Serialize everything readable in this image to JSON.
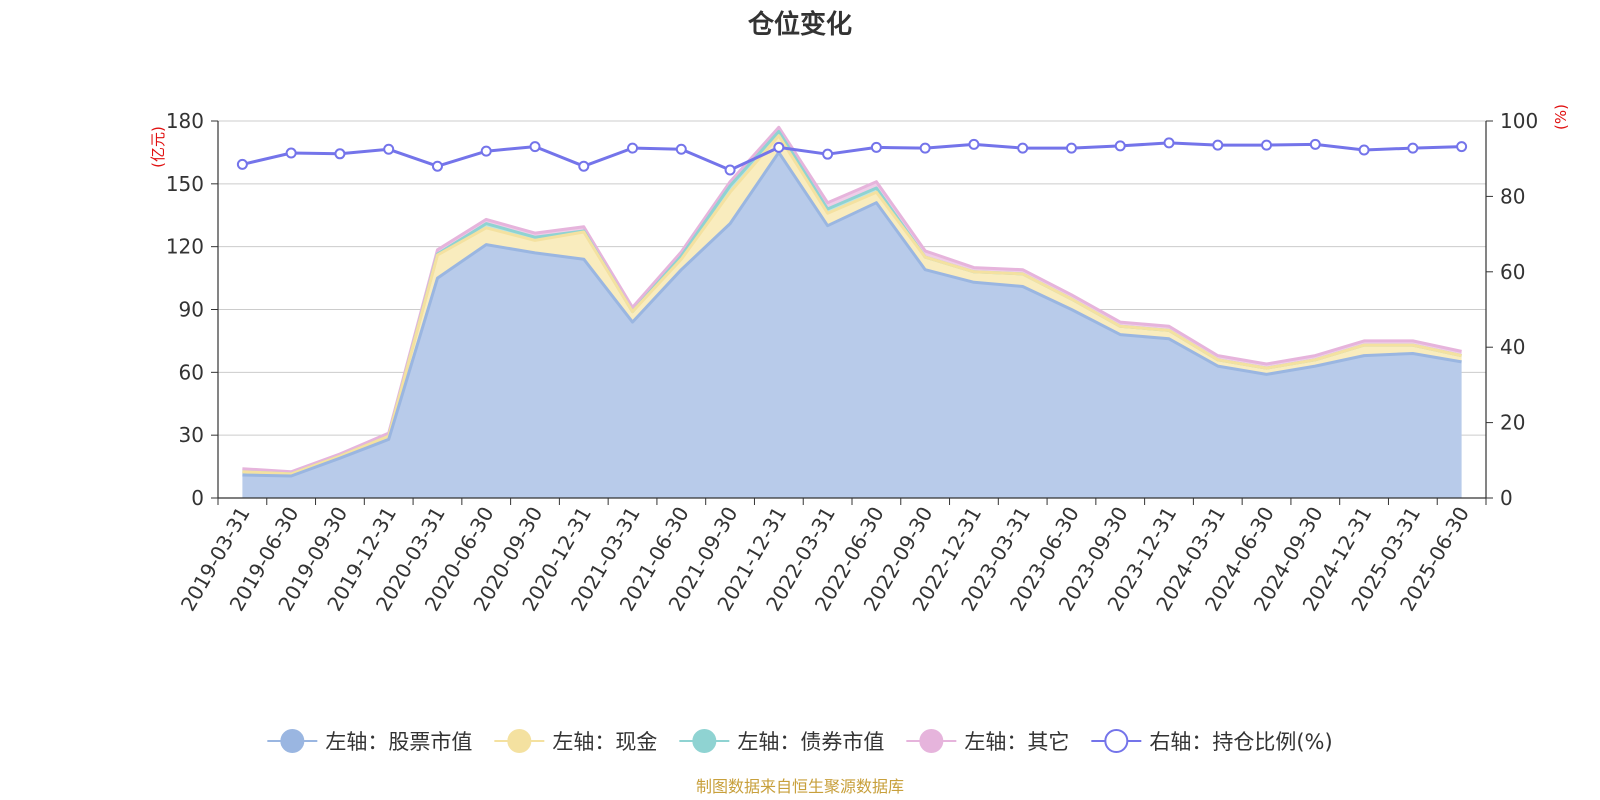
{
  "chart_data": {
    "type": "area",
    "title": "仓位变化",
    "left_unit": "(亿元)",
    "right_unit": "(%)",
    "left_ylim": [
      0,
      180
    ],
    "left_ticks": [
      0,
      30,
      60,
      90,
      120,
      150,
      180
    ],
    "right_ylim": [
      0,
      100
    ],
    "right_ticks": [
      0,
      20,
      40,
      60,
      80,
      100
    ],
    "grid": true,
    "legend_position": "bottom",
    "categories": [
      "2019-03-31",
      "2019-06-30",
      "2019-09-30",
      "2019-12-31",
      "2020-03-31",
      "2020-06-30",
      "2020-09-30",
      "2020-12-31",
      "2021-03-31",
      "2021-06-30",
      "2021-09-30",
      "2021-12-31",
      "2022-03-31",
      "2022-06-30",
      "2022-09-30",
      "2022-12-31",
      "2023-03-31",
      "2023-06-30",
      "2023-09-30",
      "2023-12-31",
      "2024-03-31",
      "2024-06-30",
      "2024-09-30",
      "2024-12-31",
      "2025-03-31",
      "2025-06-30"
    ],
    "series": [
      {
        "name": "左轴：股票市值",
        "axis": "left",
        "kind": "stacked-area",
        "color": "#9ab6e1",
        "fill": "#b8cbea",
        "values": [
          11,
          10.5,
          19,
          28,
          105,
          121,
          117,
          114,
          84,
          109,
          131,
          165,
          130,
          141,
          109,
          103,
          101,
          90,
          78,
          76,
          63,
          59,
          63,
          68,
          69,
          65
        ]
      },
      {
        "name": "左轴：现金",
        "axis": "left",
        "kind": "stacked-area",
        "color": "#f4e1a0",
        "fill": "#f9ecbe",
        "values": [
          1.5,
          1,
          1,
          1.5,
          11,
          8,
          6,
          13,
          5,
          5,
          15,
          8,
          6,
          5,
          6,
          5,
          6,
          5,
          4,
          4,
          3,
          3,
          3,
          5,
          4,
          3
        ]
      },
      {
        "name": "左轴：债券市值",
        "axis": "left",
        "kind": "stacked-area",
        "color": "#8fd3d2",
        "fill": "#bde5e4",
        "values": [
          0,
          0,
          0,
          0,
          0.5,
          2,
          1.5,
          0.5,
          0,
          1.5,
          3,
          2,
          2,
          2,
          0,
          0,
          0,
          0,
          0,
          0,
          0,
          0,
          0,
          0,
          0,
          0
        ]
      },
      {
        "name": "左轴：其它",
        "axis": "left",
        "kind": "stacked-area",
        "color": "#e6b4dc",
        "fill": "#efcde8",
        "values": [
          1.5,
          1,
          1,
          1.5,
          2,
          2,
          2,
          2,
          2,
          2,
          2,
          2,
          3,
          3,
          3,
          2,
          2,
          2,
          2,
          2,
          2,
          2,
          2,
          2,
          2,
          2
        ]
      },
      {
        "name": "右轴：持仓比例(%)",
        "axis": "right",
        "kind": "line",
        "color": "#7474ea",
        "values": [
          88.5,
          91.5,
          91.3,
          92.5,
          88,
          92,
          93.2,
          88,
          92.8,
          92.5,
          87,
          93,
          91.2,
          93,
          92.8,
          93.8,
          92.8,
          92.8,
          93.4,
          94.2,
          93.6,
          93.6,
          93.8,
          92.3,
          92.8,
          93.2
        ]
      }
    ],
    "source": "制图数据来自恒生聚源数据库"
  }
}
